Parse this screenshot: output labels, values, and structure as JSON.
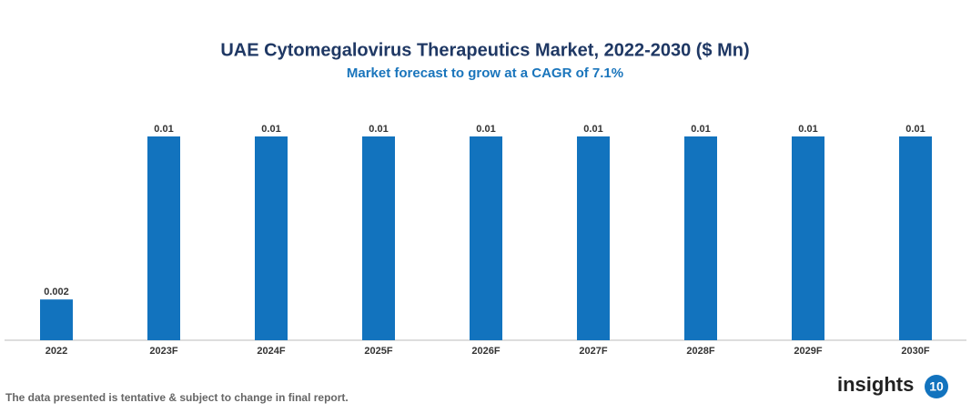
{
  "chart_data": {
    "type": "bar",
    "title": "UAE Cytomegalovirus Therapeutics Market, 2022-2030 ($ Mn)",
    "subtitle": "Market forecast to grow at a CAGR of 7.1%",
    "categories": [
      "2022",
      "2023F",
      "2024F",
      "2025F",
      "2026F",
      "2027F",
      "2028F",
      "2029F",
      "2030F"
    ],
    "values": [
      0.002,
      0.01,
      0.01,
      0.01,
      0.01,
      0.01,
      0.01,
      0.01,
      0.01
    ],
    "color": "#1273be"
  },
  "footnote": "The data presented is tentative & subject to change in final report.",
  "logo": {
    "text": "insights",
    "badge": "10"
  }
}
